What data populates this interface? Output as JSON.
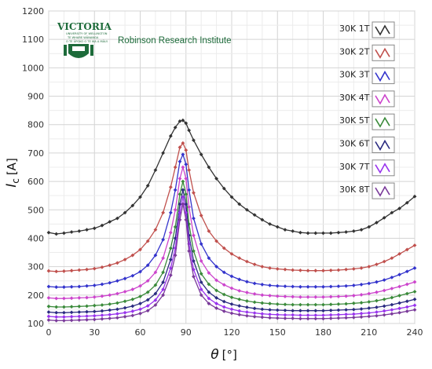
{
  "branding": {
    "university": "VICTORIA",
    "university_line2": "UNIVERSITY OF WELLINGTON",
    "university_line3": "TE WHARE WĀNANGA",
    "university_line4": "O TE ŪPOKO O TE IKA A MĀUI",
    "institute": "Robinson Research Institute",
    "accent_color": "#1d6b3a"
  },
  "chart_data": {
    "type": "line",
    "xlabel_symbol": "θ",
    "xlabel_unit": "[°]",
    "ylabel_symbol": "I",
    "ylabel_sub": "c",
    "ylabel_unit": "[A]",
    "xlim": [
      0,
      240
    ],
    "ylim": [
      100,
      1200
    ],
    "xticks": [
      0,
      30,
      60,
      90,
      120,
      150,
      180,
      210,
      240
    ],
    "yticks": [
      100,
      200,
      300,
      400,
      500,
      600,
      700,
      800,
      900,
      1000,
      1100,
      1200
    ],
    "grid": true,
    "legend_position": "top-right",
    "x": [
      0,
      5,
      10,
      15,
      20,
      25,
      30,
      35,
      40,
      45,
      50,
      55,
      60,
      65,
      70,
      75,
      80,
      83,
      86,
      88,
      90,
      92,
      95,
      100,
      105,
      110,
      115,
      120,
      125,
      130,
      135,
      140,
      145,
      150,
      155,
      160,
      165,
      170,
      175,
      180,
      185,
      190,
      195,
      200,
      205,
      210,
      215,
      220,
      225,
      230,
      235,
      240
    ],
    "series": [
      {
        "name": "30K 1T",
        "color": "#333333",
        "values": [
          420,
          415,
          418,
          422,
          425,
          430,
          435,
          445,
          458,
          470,
          490,
          515,
          545,
          585,
          640,
          700,
          760,
          790,
          812,
          815,
          805,
          780,
          745,
          695,
          650,
          610,
          575,
          545,
          520,
          500,
          482,
          465,
          450,
          440,
          430,
          425,
          420,
          418,
          418,
          418,
          418,
          420,
          422,
          425,
          430,
          440,
          455,
          472,
          490,
          505,
          525,
          547
        ]
      },
      {
        "name": "30K 2T",
        "color": "#c0504d",
        "values": [
          285,
          283,
          284,
          286,
          288,
          290,
          293,
          298,
          305,
          313,
          325,
          340,
          360,
          390,
          430,
          490,
          580,
          650,
          720,
          735,
          710,
          640,
          560,
          480,
          425,
          390,
          365,
          345,
          330,
          318,
          308,
          300,
          295,
          292,
          290,
          288,
          287,
          286,
          286,
          286,
          287,
          288,
          290,
          292,
          295,
          300,
          308,
          318,
          330,
          345,
          360,
          375
        ]
      },
      {
        "name": "30K 3T",
        "color": "#3333cc",
        "values": [
          230,
          228,
          228,
          229,
          230,
          232,
          234,
          238,
          243,
          250,
          258,
          268,
          282,
          305,
          340,
          395,
          490,
          570,
          670,
          695,
          660,
          570,
          470,
          380,
          330,
          300,
          280,
          266,
          255,
          247,
          241,
          237,
          234,
          232,
          231,
          230,
          229,
          229,
          229,
          229,
          230,
          231,
          232,
          234,
          237,
          241,
          246,
          253,
          262,
          272,
          283,
          295
        ]
      },
      {
        "name": "30K 4T",
        "color": "#cc44cc",
        "values": [
          190,
          188,
          188,
          189,
          190,
          191,
          193,
          196,
          200,
          205,
          212,
          220,
          232,
          250,
          280,
          330,
          420,
          500,
          610,
          650,
          610,
          510,
          410,
          320,
          278,
          252,
          236,
          224,
          215,
          209,
          204,
          200,
          198,
          196,
          195,
          194,
          193,
          193,
          193,
          193,
          194,
          195,
          196,
          198,
          201,
          205,
          210,
          216,
          223,
          230,
          238,
          246
        ]
      },
      {
        "name": "30K 5T",
        "color": "#3a8a3a",
        "values": [
          160,
          158,
          158,
          159,
          160,
          161,
          163,
          165,
          168,
          172,
          178,
          185,
          195,
          210,
          235,
          280,
          365,
          440,
          555,
          600,
          555,
          450,
          355,
          275,
          238,
          216,
          202,
          192,
          185,
          179,
          175,
          172,
          170,
          168,
          167,
          166,
          166,
          166,
          166,
          166,
          167,
          168,
          169,
          171,
          173,
          176,
          180,
          185,
          191,
          198,
          205,
          212
        ]
      },
      {
        "name": "30K 6T",
        "color": "#2a2a80",
        "values": [
          140,
          138,
          138,
          139,
          140,
          141,
          142,
          144,
          147,
          150,
          155,
          161,
          170,
          183,
          205,
          245,
          325,
          400,
          520,
          570,
          520,
          410,
          320,
          245,
          210,
          190,
          177,
          168,
          162,
          157,
          153,
          150,
          148,
          147,
          146,
          145,
          145,
          145,
          145,
          145,
          146,
          147,
          148,
          149,
          151,
          154,
          157,
          161,
          166,
          172,
          178,
          185
        ]
      },
      {
        "name": "30K 7T",
        "color": "#9933ee",
        "values": [
          125,
          123,
          123,
          124,
          125,
          126,
          127,
          129,
          131,
          134,
          138,
          143,
          150,
          162,
          182,
          220,
          295,
          365,
          490,
          545,
          490,
          380,
          290,
          220,
          188,
          170,
          158,
          150,
          144,
          140,
          137,
          134,
          132,
          131,
          130,
          130,
          129,
          129,
          129,
          129,
          130,
          131,
          132,
          133,
          135,
          137,
          140,
          144,
          148,
          153,
          158,
          164
        ]
      },
      {
        "name": "30K 8T",
        "color": "#7a3a9a",
        "values": [
          112,
          110,
          110,
          111,
          112,
          113,
          114,
          116,
          118,
          120,
          124,
          128,
          135,
          145,
          165,
          200,
          270,
          340,
          465,
          520,
          465,
          355,
          265,
          200,
          170,
          154,
          143,
          136,
          131,
          127,
          124,
          122,
          120,
          119,
          118,
          118,
          117,
          117,
          117,
          117,
          118,
          119,
          120,
          121,
          123,
          125,
          127,
          130,
          134,
          138,
          143,
          148
        ]
      }
    ]
  }
}
